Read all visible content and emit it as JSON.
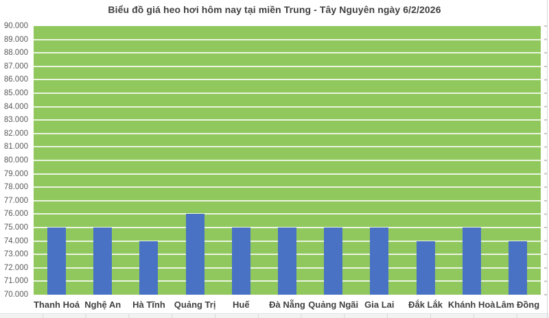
{
  "chart_data": {
    "type": "bar",
    "title": "Biểu đồ giá heo hơi hôm nay tại miền Trung - Tây Nguyên ngày 6/2/2026",
    "categories": [
      "Thanh Hoá",
      "Nghệ An",
      "Hà Tĩnh",
      "Quảng Trị",
      "Huế",
      "Đà Nẵng",
      "Quảng Ngãi",
      "Gia Lai",
      "Đắk Lắk",
      "Khánh Hoà",
      "Lâm Đồng"
    ],
    "values": [
      75000,
      75000,
      74000,
      76000,
      75000,
      75000,
      75000,
      75000,
      74000,
      75000,
      74000
    ],
    "xlabel": "",
    "ylabel": "",
    "ylim": [
      70000,
      90000
    ],
    "ytick_step": 1000,
    "ytick_labels": [
      "90.000",
      "89.000",
      "88.000",
      "87.000",
      "86.000",
      "85.000",
      "84.000",
      "83.000",
      "82.000",
      "81.000",
      "80.000",
      "79.000",
      "78.000",
      "77.000",
      "76.000",
      "75.000",
      "74.000",
      "73.000",
      "72.000",
      "71.000",
      "70.000"
    ],
    "grid": "horizontal",
    "legend": "none",
    "colors": {
      "bar": "#4a72c4",
      "plot_background": "#90c85d",
      "gridline": "#ffffff",
      "title_text": "#3f3f3f",
      "xtick_text": "#404040",
      "ytick_text": "#595959"
    }
  }
}
